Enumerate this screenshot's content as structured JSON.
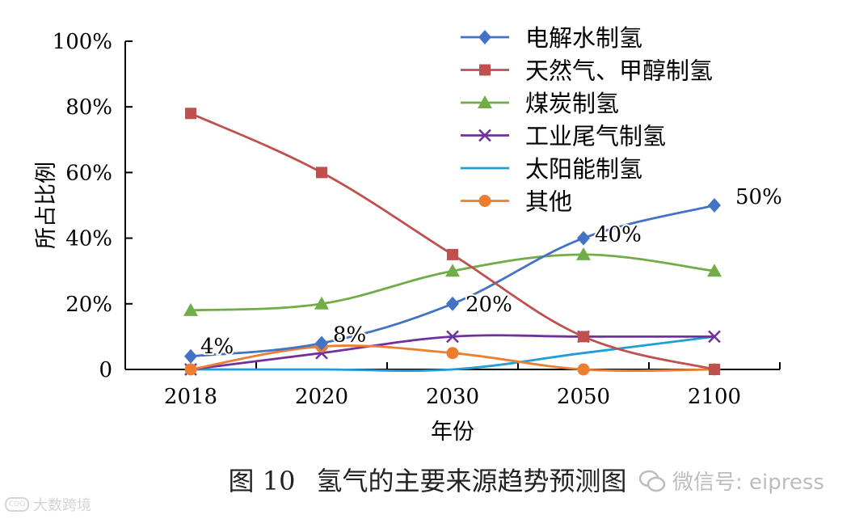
{
  "chart_data": {
    "type": "line",
    "categories": [
      "2018",
      "2020",
      "2030",
      "2050",
      "2100"
    ],
    "ylim": [
      0,
      100
    ],
    "yticks": [
      "0",
      "20%",
      "40%",
      "60%",
      "80%",
      "100%"
    ],
    "xlabel": "年份",
    "ylabel": "所占比例",
    "legend_position": "top-right",
    "series": [
      {
        "name": "电解水制氢",
        "color": "#4472c4",
        "marker": "diamond",
        "values": [
          4,
          8,
          20,
          40,
          50
        ],
        "labels": [
          "4%",
          "8%",
          "20%",
          "40%",
          "50%"
        ]
      },
      {
        "name": "天然气、甲醇制氢",
        "color": "#c0504d",
        "marker": "square",
        "values": [
          78,
          60,
          35,
          10,
          0
        ]
      },
      {
        "name": "煤炭制氢",
        "color": "#70ad47",
        "marker": "triangle",
        "values": [
          18,
          20,
          30,
          35,
          30
        ]
      },
      {
        "name": "工业尾气制氢",
        "color": "#7030a0",
        "marker": "x",
        "values": [
          0,
          5,
          10,
          10,
          10
        ]
      },
      {
        "name": "太阳能制氢",
        "color": "#1f9ed8",
        "marker": "none",
        "values": [
          0,
          0,
          0,
          5,
          10
        ]
      },
      {
        "name": "其他",
        "color": "#ed7d31",
        "marker": "circle",
        "values": [
          0,
          7,
          5,
          0,
          0
        ]
      }
    ]
  },
  "caption": {
    "figure_no": "图 10",
    "title": "氢气的主要来源趋势预测图"
  },
  "watermarks": {
    "left": "大数跨境",
    "right": "微信号: eipress"
  }
}
